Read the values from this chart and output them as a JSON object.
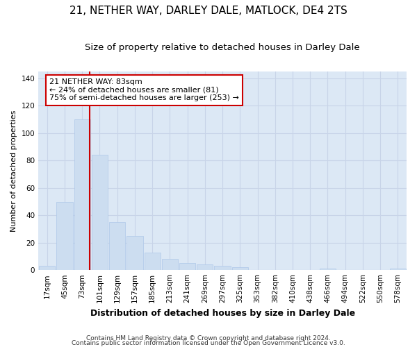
{
  "title1": "21, NETHER WAY, DARLEY DALE, MATLOCK, DE4 2TS",
  "title2": "Size of property relative to detached houses in Darley Dale",
  "xlabel": "Distribution of detached houses by size in Darley Dale",
  "ylabel": "Number of detached properties",
  "footnote1": "Contains HM Land Registry data © Crown copyright and database right 2024.",
  "footnote2": "Contains public sector information licensed under the Open Government Licence v3.0.",
  "categories": [
    "17sqm",
    "45sqm",
    "73sqm",
    "101sqm",
    "129sqm",
    "157sqm",
    "185sqm",
    "213sqm",
    "241sqm",
    "269sqm",
    "297sqm",
    "325sqm",
    "353sqm",
    "382sqm",
    "410sqm",
    "438sqm",
    "466sqm",
    "494sqm",
    "522sqm",
    "550sqm",
    "578sqm"
  ],
  "values": [
    3,
    50,
    110,
    84,
    35,
    25,
    13,
    8,
    5,
    4,
    3,
    2,
    0,
    0,
    0,
    0,
    1,
    0,
    0,
    0,
    1
  ],
  "bar_color": "#ccddf0",
  "bar_edge_color": "#aec8e8",
  "grid_color": "#c8d4e8",
  "background_color": "#dce8f5",
  "vline_x": 2.42,
  "vline_color": "#cc0000",
  "annotation_text": "21 NETHER WAY: 83sqm\n← 24% of detached houses are smaller (81)\n75% of semi-detached houses are larger (253) →",
  "annotation_box_color": "#ffffff",
  "annotation_box_edge": "#cc0000",
  "ylim": [
    0,
    145
  ],
  "yticks": [
    0,
    20,
    40,
    60,
    80,
    100,
    120,
    140
  ],
  "title1_fontsize": 11,
  "title2_fontsize": 9.5,
  "xlabel_fontsize": 9,
  "ylabel_fontsize": 8,
  "tick_fontsize": 7.5,
  "annot_fontsize": 8,
  "footnote_fontsize": 6.5
}
